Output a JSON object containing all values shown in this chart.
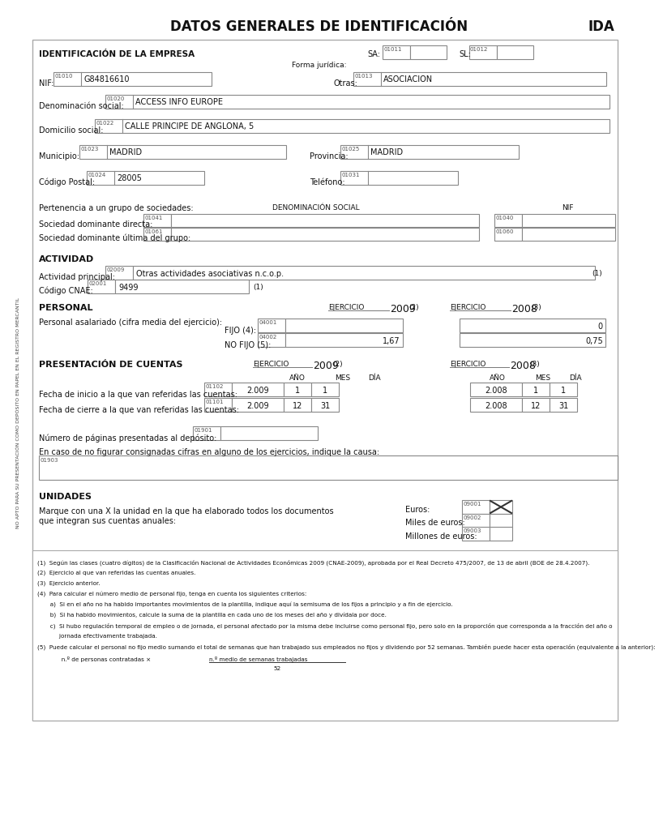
{
  "title": "DATOS GENERALES DE IDENTIFICACIÓN",
  "title_right": "IDA",
  "side_label": "NO APTO PARA SU PRESENTACIÓN COMO DEPÓSITO EN PAPEL EN EL REGISTRO MERCANTIL",
  "fields": {
    "empresa_label": "IDENTIFICACIÓN DE LA EMPRESA",
    "sa_label": "SA:",
    "sa_code": "01011",
    "sl_label": "SL:",
    "sl_code": "01012",
    "forma_juridica": "Forma jurídica:",
    "nif_label": "NIF:",
    "nif_code": "01010",
    "nif_value": "G84816610",
    "otras_label": "Otras:",
    "otras_code": "01013",
    "otras_value": "ASOCIACION",
    "den_social_label": "Denominación social:",
    "den_social_code": "01020",
    "den_social_value": "ACCESS INFO EUROPE",
    "domicilio_label": "Domicilio social:",
    "domicilio_code": "01022",
    "domicilio_value": "CALLE PRINCIPE DE ANGLONA, 5",
    "municipio_label": "Municipio:",
    "municipio_code": "01023",
    "municipio_value": "MADRID",
    "provincia_label": "Provincia:",
    "provincia_code": "01025",
    "provincia_value": "MADRID",
    "cp_label": "Código Postal:",
    "cp_code": "01024",
    "cp_value": "28005",
    "telefono_label": "Teléfono:",
    "telefono_code": "01031",
    "pertenencia_label": "Pertenencia a un grupo de sociedades:",
    "den_social_col": "DENOMINACIÓN SOCIAL",
    "nif_col": "NIF",
    "soc_dom_label": "Sociedad dominante directa:",
    "soc_dom_code": "01041",
    "soc_dom_code2": "01040",
    "soc_ult_label": "Sociedad dominante última del grupo:",
    "soc_ult_code": "01061",
    "soc_ult_code2": "01060",
    "actividad_title": "ACTIVIDAD",
    "act_principal_label": "Actividad principal:",
    "act_principal_code": "02009",
    "act_principal_value": "Otras actividades asociativas n.c.o.p.",
    "act_principal_note": "(1)",
    "cnae_label": "Código CNAE:",
    "cnae_code": "02001",
    "cnae_value": "9499",
    "cnae_note": "(1)",
    "personal_title": "PERSONAL",
    "ejercicio_label": "EJERCICIO",
    "ejercicio_2009": "2009",
    "ejercicio_note2": "(2)",
    "ejercicio_2008": "2008",
    "ejercicio_note3": "(3)",
    "personal_asal_label": "Personal asalariado (cifra media del ejercicio):",
    "fijo_label": "FIJO (4):",
    "fijo_code": "04001",
    "fijo_val_2008": "0",
    "no_fijo_label": "NO FIJO (5):",
    "no_fijo_code": "04002",
    "no_fijo_val_2009": "1,67",
    "no_fijo_val_2008": "0,75",
    "presentacion_title": "PRESENTACIÓN DE CUENTAS",
    "pres_ejercicio_label": "EJERCICIO",
    "pres_2009": "2009",
    "pres_note2": "(2)",
    "pres_2008": "2008",
    "pres_note3": "(3)",
    "anyo_label": "AÑO",
    "mes_label": "MES",
    "dia_label": "DÍA",
    "fecha_inicio_label": "Fecha de inicio a la que van referidas las cuentas:",
    "fecha_inicio_code": "01102",
    "fi_anyo": "2.009",
    "fi_mes": "1",
    "fi_dia": "1",
    "fi_anyo2": "2.008",
    "fi_mes2": "1",
    "fi_dia2": "1",
    "fecha_cierre_label": "Fecha de cierre a la que van referidas las cuentas:",
    "fecha_cierre_code": "01101",
    "fc_anyo": "2.009",
    "fc_mes": "12",
    "fc_dia": "31",
    "fc_anyo2": "2.008",
    "fc_mes2": "12",
    "fc_dia2": "31",
    "num_paginas_label": "Número de páginas presentadas al depósito:",
    "num_paginas_code": "01901",
    "en_caso_label": "En caso de no figurar consignadas cifras en alguno de los ejercicios, indique la causa:",
    "en_caso_code": "01903",
    "unidades_title": "UNIDADES",
    "euros_label": "Euros:",
    "euros_code": "09001",
    "miles_label": "Miles de euros:",
    "miles_code": "09002",
    "millones_label": "Millones de euros:",
    "millones_code": "09003",
    "marque_label": "Marque con una X la unidad en la que ha elaborado todos los documentos",
    "marque_label2": "que integran sus cuentas anuales:",
    "fn1": "(1)  Según las clases (cuatro dígitos) de la Clasificación Nacional de Actividades Económicas 2009 (CNAE-2009), aprobada por el Real Decreto 475/2007, de 13 de abril (BOE de 28.4.2007).",
    "fn2": "(2)  Ejercicio al que van referidas las cuentas anuales.",
    "fn3": "(3)  Ejercicio anterior.",
    "fn4": "(4)  Para calcular el número medio de personal fijo, tenga en cuenta los siguientes criterios:",
    "fn4a": "       a)  Si en el año no ha habido importantes movimientos de la plantilla, indique aquí la semisuma de los fijos a principio y a fin de ejercicio.",
    "fn4b": "       b)  Si ha habido movimientos, calcule la suma de la plantilla en cada uno de los meses del año y divídala por doce.",
    "fn4c": "       c)  Si hubo regulación temporal de empleo o de jornada, el personal afectado por la misma debe incluirse como personal fijo, pero solo en la proporción que corresponda a la fracción del año o",
    "fn4c2": "            jornada efectivamente trabajada.",
    "fn5": "(5)  Puede calcular el personal no fijo medio sumando el total de semanas que han trabajado sus empleados no fijos y dividendo por 52 semanas. También puede hacer esta operación (equivalente a la anterior):",
    "fn5a_pre": "       n.º de personas contratadas ×",
    "fn5a_num": "n.º medio de semanas trabajadas",
    "fn5a_den": "52"
  }
}
